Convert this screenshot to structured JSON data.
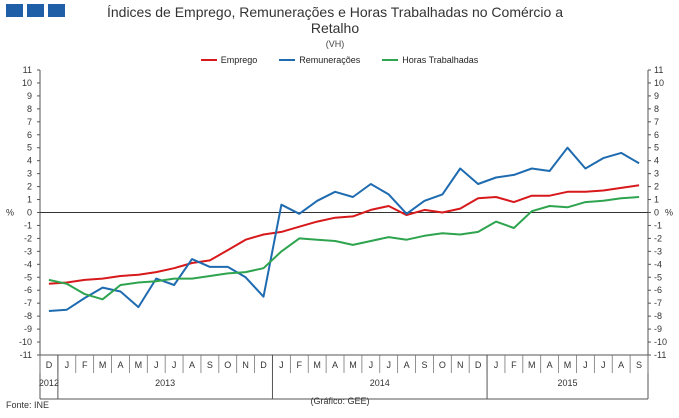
{
  "header": {
    "title_line1": "Índices de Emprego, Remunerações e Horas Trabalhadas no Comércio a",
    "title_line2": "Retalho",
    "subtitle": "(VH)"
  },
  "footer": {
    "source": "Fonte: INE",
    "credit": "(Gráfico: GEE)"
  },
  "chart_data": {
    "type": "line",
    "title": "Índices de Emprego, Remunerações e Horas Trabalhadas no Comércio a Retalho",
    "subtitle": "(VH)",
    "ylabel_left": "%",
    "ylabel_right": "%",
    "ylim": [
      -11,
      11
    ],
    "yticks": [
      11,
      10,
      9,
      8,
      7,
      6,
      5,
      4,
      3,
      2,
      1,
      0,
      -1,
      -2,
      -3,
      -4,
      -5,
      -6,
      -7,
      -8,
      -9,
      -10,
      -11
    ],
    "grid": false,
    "legend_position": "top",
    "categories": [
      "D",
      "J",
      "F",
      "M",
      "A",
      "M",
      "J",
      "J",
      "A",
      "S",
      "O",
      "N",
      "D",
      "J",
      "F",
      "M",
      "A",
      "M",
      "J",
      "J",
      "A",
      "S",
      "O",
      "N",
      "D",
      "J",
      "F",
      "M",
      "A",
      "M",
      "J",
      "J",
      "A",
      "S"
    ],
    "years": [
      {
        "label": "2012",
        "start": 0,
        "end": 0
      },
      {
        "label": "2013",
        "start": 1,
        "end": 12
      },
      {
        "label": "2014",
        "start": 13,
        "end": 24
      },
      {
        "label": "2015",
        "start": 25,
        "end": 33
      }
    ],
    "series": [
      {
        "name": "Emprego",
        "color": "#d7191c",
        "values": [
          -5.5,
          -5.4,
          -5.2,
          -5.1,
          -4.9,
          -4.8,
          -4.6,
          -4.3,
          -3.9,
          -3.7,
          -2.9,
          -2.1,
          -1.7,
          -1.5,
          -1.1,
          -0.7,
          -0.4,
          -0.3,
          0.2,
          0.5,
          -0.2,
          0.2,
          0.0,
          0.3,
          1.1,
          1.2,
          0.8,
          1.3,
          1.3,
          1.6,
          1.6,
          1.7,
          1.9,
          2.1
        ]
      },
      {
        "name": "Remunerações",
        "color": "#1f6bb0",
        "values": [
          -7.6,
          -7.5,
          -6.6,
          -5.8,
          -6.1,
          -7.3,
          -5.1,
          -5.6,
          -3.6,
          -4.2,
          -4.2,
          -5.0,
          -6.5,
          0.6,
          -0.1,
          0.9,
          1.6,
          1.2,
          2.2,
          1.4,
          -0.1,
          0.9,
          1.4,
          3.4,
          2.2,
          2.7,
          2.9,
          3.4,
          3.2,
          5.0,
          3.4,
          4.2,
          4.6,
          3.8
        ]
      },
      {
        "name": "Horas Trabalhadas",
        "color": "#2ea44f",
        "values": [
          -5.2,
          -5.5,
          -6.3,
          -6.7,
          -5.6,
          -5.4,
          -5.3,
          -5.1,
          -5.1,
          -4.9,
          -4.7,
          -4.6,
          -4.3,
          -3.0,
          -2.0,
          -2.1,
          -2.2,
          -2.5,
          -2.2,
          -1.9,
          -2.1,
          -1.8,
          -1.6,
          -1.7,
          -1.5,
          -0.7,
          -1.2,
          0.1,
          0.5,
          0.4,
          0.8,
          0.9,
          1.1,
          1.2
        ]
      }
    ]
  }
}
